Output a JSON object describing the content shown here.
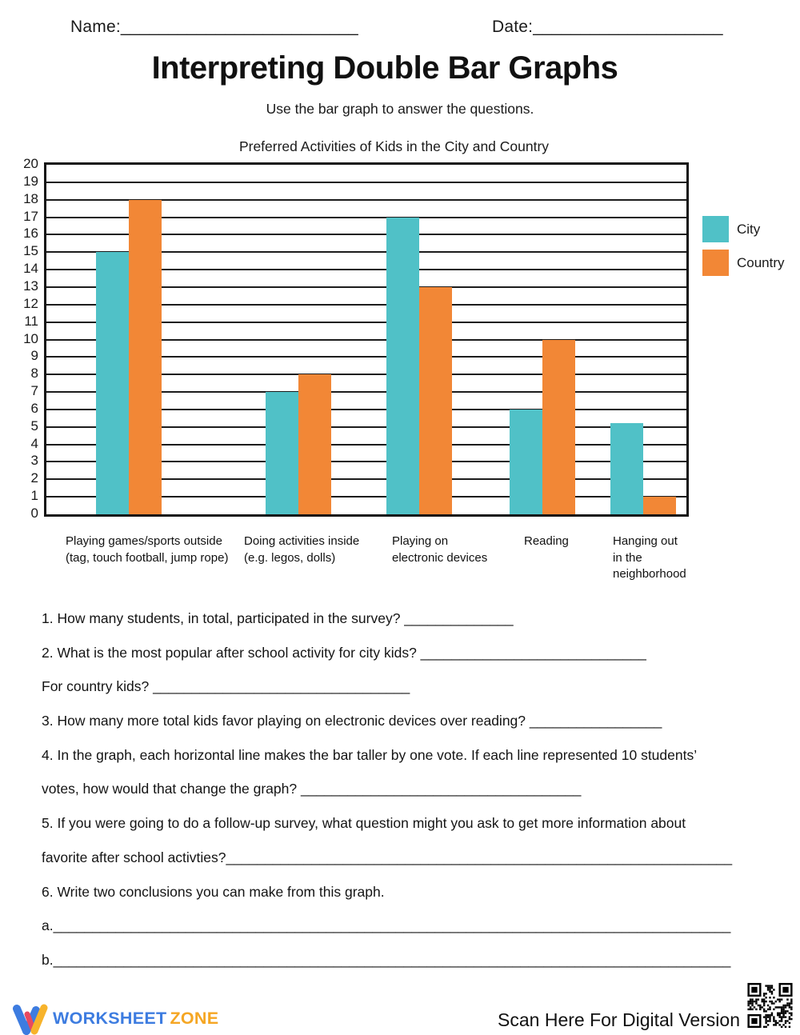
{
  "header": {
    "name_line": "Name:_________________________",
    "date_line": "Date:____________________"
  },
  "title": "Interpreting Double Bar Graphs",
  "subtitle": "Use the bar graph to answer the questions.",
  "chart_data": {
    "type": "bar",
    "title": "Preferred Activities of Kids in the City and Country",
    "categories": [
      [
        "Playing games/sports outside",
        "(tag, touch football, jump rope)"
      ],
      [
        "Doing activities inside",
        "(e.g. legos, dolls)"
      ],
      [
        "Playing on",
        "electronic devices"
      ],
      [
        "Reading"
      ],
      [
        "Hanging out",
        "in the",
        "neighborhood"
      ]
    ],
    "series": [
      {
        "name": "City",
        "color": "#50C1C7",
        "values": [
          15,
          7,
          17,
          6,
          5.2
        ]
      },
      {
        "name": "Country",
        "color": "#F28736",
        "values": [
          18,
          8,
          13,
          10,
          1
        ]
      }
    ],
    "ylim": [
      0,
      20
    ],
    "ytick_step": 1,
    "grid": true,
    "legend_position": "right",
    "xlabel": "",
    "ylabel": ""
  },
  "questions": {
    "lines": [
      "1. How many students, in total, participated in the survey? ______________",
      "2. What is the most popular after school activity for city kids? _____________________________",
      "For country kids? _________________________________",
      "3. How many more total kids favor playing on electronic devices over reading? _________________",
      "4. In the graph, each horizontal line makes the bar taller by one vote. If each line represented 10 students’",
      "votes, how would that change the graph? ____________________________________",
      "5. If you were going to do a follow-up survey, what question might you ask to get more information about",
      "favorite after school activties?_________________________________________________________________",
      "6. Write two conclusions you can make from this graph.",
      "a._______________________________________________________________________________________",
      "b._______________________________________________________________________________________"
    ]
  },
  "footer": {
    "brand_part1": "WORKSHEET",
    "brand_part2": "ZONE",
    "scan_text": "Scan Here For Digital Version",
    "brand_colors": {
      "blue": "#3D7CE0",
      "orange": "#F5A623",
      "logo_red": "#E8495F",
      "logo_yellow": "#F7B32B"
    }
  }
}
